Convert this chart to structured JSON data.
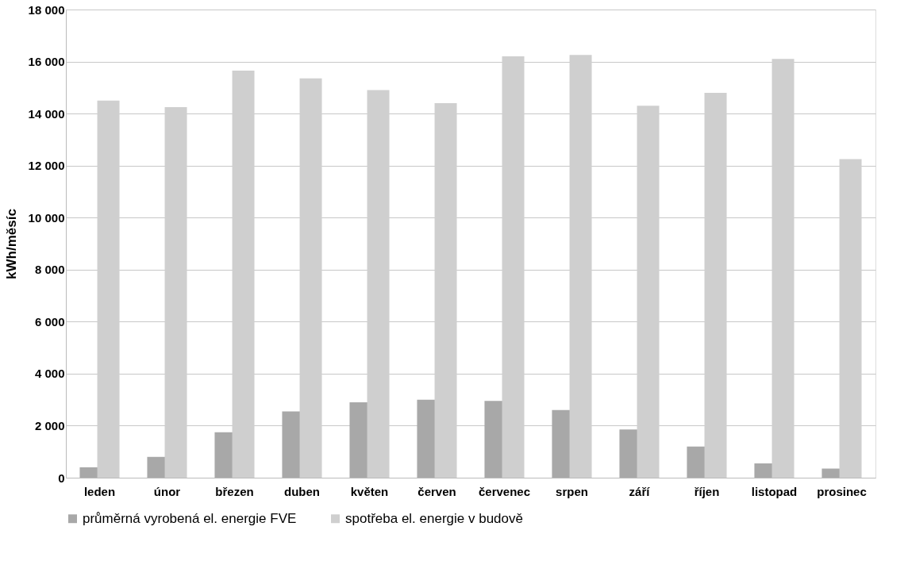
{
  "chart_data": {
    "type": "bar",
    "ylabel": "kWh/měsíc",
    "categories": [
      "leden",
      "únor",
      "březen",
      "duben",
      "květen",
      "červen",
      "červenec",
      "srpen",
      "září",
      "říjen",
      "listopad",
      "prosinec"
    ],
    "series": [
      {
        "name": "průměrná vyrobená el. energie FVE",
        "color": "#a8a8a8",
        "values": [
          400,
          800,
          1750,
          2550,
          2900,
          3000,
          2950,
          2600,
          1850,
          1200,
          550,
          350
        ]
      },
      {
        "name": "spotřeba el. energie v budově",
        "color": "#cfcfcf",
        "values": [
          14500,
          14250,
          15650,
          15350,
          14900,
          14400,
          16200,
          16250,
          14300,
          14800,
          16100,
          12250
        ]
      }
    ],
    "ylim": [
      0,
      18000
    ],
    "yticks": [
      {
        "value": 0,
        "label": "0"
      },
      {
        "value": 2000,
        "label": "2 000"
      },
      {
        "value": 4000,
        "label": "4 000"
      },
      {
        "value": 6000,
        "label": "6 000"
      },
      {
        "value": 8000,
        "label": "8 000"
      },
      {
        "value": 10000,
        "label": "10 000"
      },
      {
        "value": 12000,
        "label": "12 000"
      },
      {
        "value": 14000,
        "label": "14 000"
      },
      {
        "value": 16000,
        "label": "16 000"
      },
      {
        "value": 18000,
        "label": "18 000"
      }
    ],
    "grid": "y",
    "legend": "bottom"
  }
}
